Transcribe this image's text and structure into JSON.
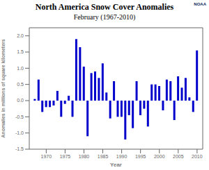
{
  "chart_data": {
    "type": "bar",
    "title": "North America Snow Cover Anomalies",
    "subtitle": "February (1967-2010)",
    "xlabel": "Year",
    "ylabel": "Anomalies in millions of square kilometers",
    "annotations": [
      "NOAA"
    ],
    "color": "#0000cc",
    "x": [
      1967,
      1968,
      1969,
      1970,
      1971,
      1972,
      1973,
      1974,
      1975,
      1976,
      1977,
      1978,
      1979,
      1980,
      1981,
      1982,
      1983,
      1984,
      1985,
      1986,
      1987,
      1988,
      1989,
      1990,
      1991,
      1992,
      1993,
      1994,
      1995,
      1996,
      1997,
      1998,
      1999,
      2000,
      2001,
      2002,
      2003,
      2004,
      2005,
      2006,
      2007,
      2008,
      2009,
      2010
    ],
    "values": [
      0.05,
      0.65,
      -0.35,
      -0.2,
      -0.2,
      -0.15,
      0.3,
      -0.5,
      -0.1,
      0.15,
      -0.5,
      1.9,
      1.65,
      1.05,
      -1.1,
      0.85,
      0.9,
      0.7,
      1.15,
      0.25,
      -0.55,
      0.6,
      -0.5,
      -0.5,
      -1.2,
      -0.45,
      -0.85,
      0.6,
      -0.45,
      -0.25,
      -0.8,
      0.5,
      0.5,
      0.45,
      -0.3,
      0.65,
      0.6,
      -0.6,
      0.75,
      0.4,
      0.7,
      0.1,
      -0.35,
      1.55
    ],
    "xlim": [
      1965.5,
      2011.5
    ],
    "xticks": [
      1970,
      1975,
      1980,
      1985,
      1990,
      1995,
      2000,
      2005,
      2010
    ],
    "ylim": [
      -1.5,
      2.25
    ],
    "yticks": [
      -1.5,
      {
        "value": -1.0,
        "label": "-1.0"
      },
      -0.5,
      {
        "value": 0,
        "label": "0.0"
      },
      0.5,
      {
        "value": 1.0,
        "label": "1.0"
      },
      1.5,
      {
        "value": 2.0,
        "label": "2.0"
      }
    ],
    "grid": false
  }
}
